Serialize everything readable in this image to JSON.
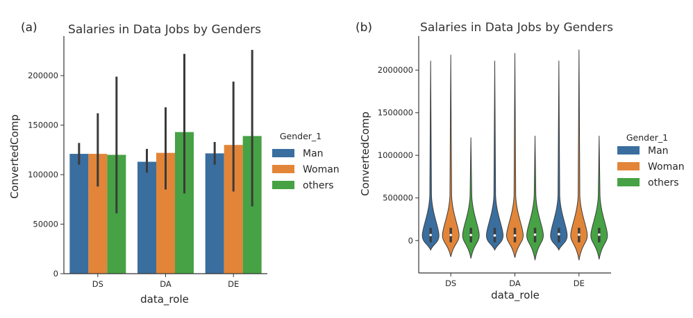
{
  "colors": {
    "Man": "#3a6e9f",
    "Woman": "#e28539",
    "others": "#46a244",
    "error": "#3a3a3a"
  },
  "chart_data": [
    {
      "panel": "(a)",
      "type": "bar",
      "title": "Salaries in Data Jobs by Genders",
      "xlabel": "data_role",
      "ylabel": "ConvertedComp",
      "categories": [
        "DS",
        "DA",
        "DE"
      ],
      "ylim": [
        0,
        240000
      ],
      "yticks": [
        0,
        50000,
        100000,
        150000,
        200000
      ],
      "grid": false,
      "legend": {
        "title": "Gender_1",
        "placement": "right",
        "entries": [
          "Man",
          "Woman",
          "others"
        ]
      },
      "series": [
        {
          "name": "Man",
          "values": [
            121000,
            113000,
            121500
          ],
          "ci": [
            [
              110000,
              132000
            ],
            [
              102000,
              126000
            ],
            [
              110000,
              133000
            ]
          ]
        },
        {
          "name": "Woman",
          "values": [
            121000,
            122000,
            130000
          ],
          "ci": [
            [
              88000,
              162000
            ],
            [
              85000,
              168000
            ],
            [
              83000,
              194000
            ]
          ]
        },
        {
          "name": "others",
          "values": [
            120000,
            143000,
            139000
          ],
          "ci": [
            [
              61000,
              199000
            ],
            [
              81000,
              222000
            ],
            [
              68000,
              226000
            ]
          ]
        }
      ]
    },
    {
      "panel": "(b)",
      "type": "violin",
      "title": "Salaries in Data Jobs by Genders",
      "xlabel": "data_role",
      "ylabel": "ConvertedComp",
      "categories": [
        "DS",
        "DA",
        "DE"
      ],
      "ylim": [
        -380000,
        2400000
      ],
      "yticks": [
        0,
        500000,
        1000000,
        1500000,
        2000000
      ],
      "grid": false,
      "legend": {
        "title": "Gender_1",
        "placement": "right",
        "entries": [
          "Man",
          "Woman",
          "others"
        ]
      },
      "series": [
        {
          "name": "Man",
          "min": [
            -110000,
            -110000,
            -110000
          ],
          "max": [
            2110000,
            2110000,
            2110000
          ],
          "median": [
            65000,
            60000,
            75000
          ]
        },
        {
          "name": "Woman",
          "min": [
            -190000,
            -200000,
            -230000
          ],
          "max": [
            2180000,
            2200000,
            2240000
          ],
          "median": [
            65000,
            60000,
            70000
          ]
        },
        {
          "name": "others",
          "min": [
            -210000,
            -230000,
            -220000
          ],
          "max": [
            1210000,
            1230000,
            1230000
          ],
          "median": [
            65000,
            70000,
            70000
          ]
        }
      ]
    }
  ]
}
